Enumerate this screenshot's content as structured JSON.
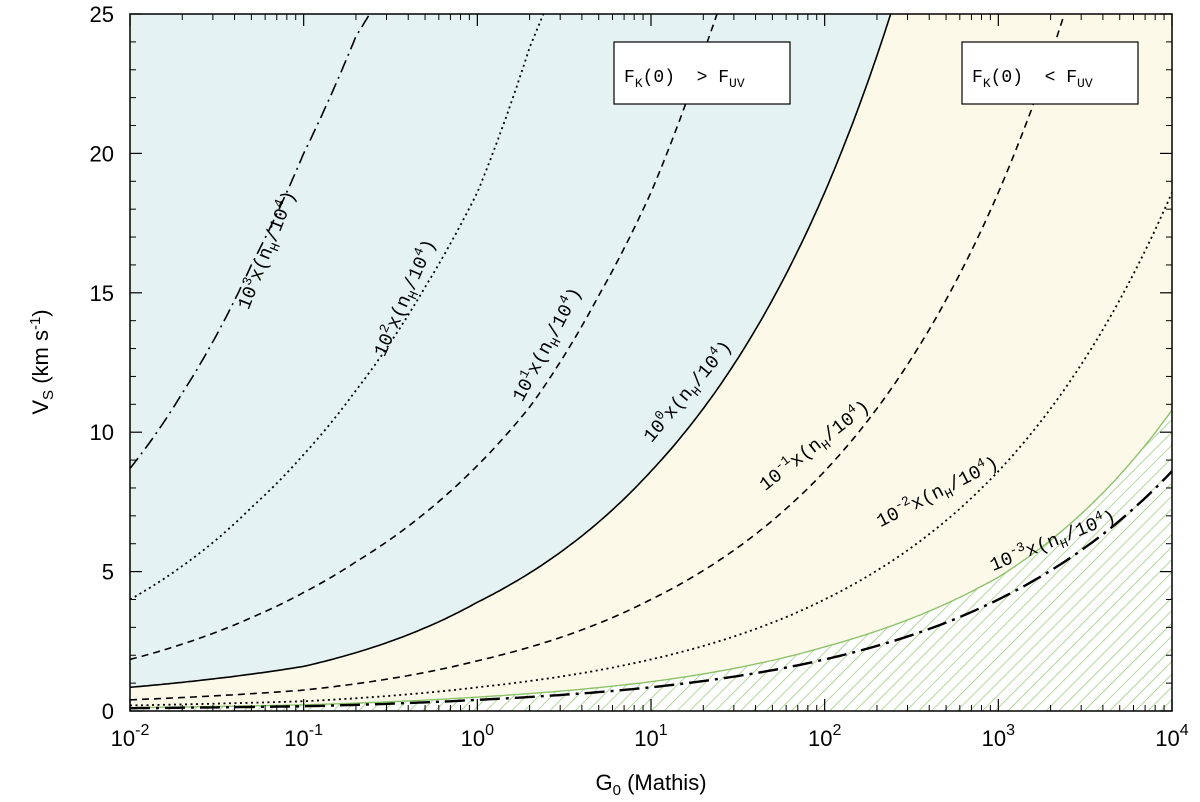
{
  "chart_data": {
    "type": "line",
    "title": "",
    "xlabel": "G",
    "xlabel_sub": "0",
    "xlabel_suffix": " (Mathis)",
    "ylabel": "V",
    "ylabel_sub": "S",
    "ylabel_unit_pre": " (km s",
    "ylabel_unit_sup": "-1",
    "ylabel_unit_post": ")",
    "xscale": "log",
    "xlim": [
      0.01,
      10000
    ],
    "ylim": [
      0,
      25
    ],
    "grid": false,
    "x_ticks": [
      {
        "base": "10",
        "exp": "-2"
      },
      {
        "base": "10",
        "exp": "-1"
      },
      {
        "base": "10",
        "exp": "0"
      },
      {
        "base": "10",
        "exp": "1"
      },
      {
        "base": "10",
        "exp": "2"
      },
      {
        "base": "10",
        "exp": "3"
      },
      {
        "base": "10",
        "exp": "4"
      }
    ],
    "y_ticks": [
      "0",
      "5",
      "10",
      "15",
      "20",
      "25"
    ],
    "boxes": [
      {
        "F": "F",
        "K": "K",
        "mid": "(0)  > F",
        "UV": "UV"
      },
      {
        "F": "F",
        "K": "K",
        "mid": "(0)  < F",
        "UV": "UV"
      }
    ],
    "regions": [
      {
        "name": "FK(0) > FUV",
        "color": "#e4f3f1"
      },
      {
        "name": "FK(0) < FUV",
        "color": "#fdf9e8"
      },
      {
        "name": "hatched",
        "color": "#8cc36a"
      }
    ],
    "series": [
      {
        "exp": "3",
        "style": "dash-dot",
        "x": [
          0.01,
          0.02,
          0.05,
          0.1,
          0.2,
          0.24
        ],
        "y": [
          8.7,
          11.4,
          16.0,
          20.0,
          24.2,
          25.0
        ]
      },
      {
        "exp": "2",
        "style": "dotted",
        "x": [
          0.01,
          0.02,
          0.05,
          0.1,
          0.2,
          0.5,
          1,
          2,
          2.4
        ],
        "y": [
          4.0,
          5.2,
          7.3,
          9.2,
          11.5,
          15.2,
          18.6,
          23.8,
          25.0
        ]
      },
      {
        "exp": "1",
        "style": "dashed",
        "x": [
          0.01,
          0.02,
          0.05,
          0.1,
          0.2,
          0.5,
          1,
          2,
          5,
          10,
          20,
          24
        ],
        "y": [
          1.85,
          2.4,
          3.35,
          4.25,
          5.35,
          7.1,
          8.8,
          10.9,
          14.9,
          18.6,
          23.6,
          25.0
        ]
      },
      {
        "exp": "0",
        "style": "solid",
        "x": [
          0.01,
          0.1,
          1,
          10,
          100,
          240
        ],
        "y": [
          0.85,
          1.6,
          3.9,
          8.6,
          18.6,
          25.0
        ]
      },
      {
        "exp": "-1",
        "style": "dashed",
        "x": [
          0.01,
          0.1,
          1,
          10,
          100,
          1000,
          2400
        ],
        "y": [
          0.4,
          0.75,
          1.8,
          4.0,
          8.6,
          18.6,
          25.0
        ]
      },
      {
        "exp": "-2",
        "style": "dotted",
        "x": [
          0.01,
          0.1,
          1,
          10,
          100,
          1000,
          10000
        ],
        "y": [
          0.2,
          0.35,
          0.85,
          1.85,
          4.0,
          8.6,
          18.6
        ]
      },
      {
        "exp": "-3",
        "style": "long-dash-dot",
        "x": [
          0.01,
          0.1,
          1,
          10,
          100,
          1000,
          10000
        ],
        "y": [
          0.1,
          0.17,
          0.4,
          0.85,
          1.85,
          4.0,
          8.6
        ]
      }
    ],
    "hatched_boundary": {
      "x": [
        0.01,
        0.1,
        1,
        10,
        100,
        1000,
        10000
      ],
      "y": [
        0.12,
        0.22,
        0.5,
        1.05,
        2.3,
        4.8,
        10.8
      ]
    },
    "curve_label_text": {
      "x": "x(n",
      "H": "H",
      "div": "/10",
      "p4": "4",
      "close": ")"
    }
  }
}
